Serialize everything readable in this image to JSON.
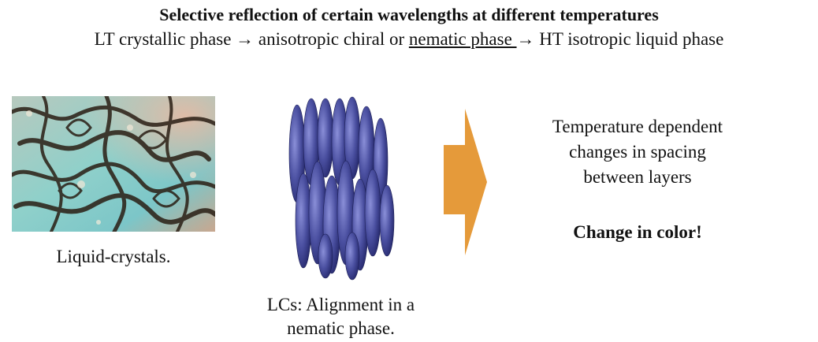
{
  "header": {
    "title": "Selective reflection of certain wavelengths at different temperatures",
    "subtitle_part1": "LT crystallic phase → anisotropic chiral or ",
    "subtitle_underlined": "nematic phase ",
    "subtitle_part2": "→ HT isotropic liquid phase"
  },
  "left": {
    "caption": "Liquid-crystals."
  },
  "middle": {
    "caption_line1": "LCs: Alignment in a",
    "caption_line2": "nematic phase."
  },
  "right": {
    "line1": "Temperature dependent",
    "line2": "changes in spacing",
    "line3": "between layers",
    "emphasis": "Change in color!"
  },
  "colors": {
    "arrow": "#E59A3A",
    "ellipse": "#4A4FA0",
    "photo_teal": "#7FC7C4",
    "photo_dark": "#2A1E14"
  }
}
